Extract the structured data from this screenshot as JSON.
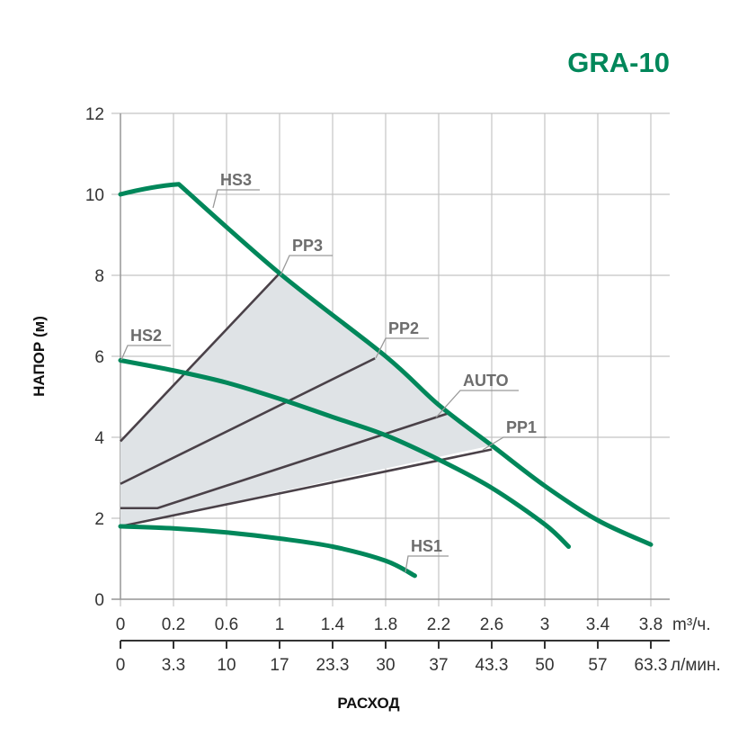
{
  "chart_data": {
    "type": "line",
    "title": "GRA-10",
    "xlabel": "РАСХОД",
    "ylabel": "НАПОР (м)",
    "x_ticks_primary": [
      "0",
      "0.2",
      "0.6",
      "1",
      "1.4",
      "1.8",
      "2.2",
      "2.6",
      "3",
      "3.4",
      "3.8"
    ],
    "x_unit_primary": "m³/ч.",
    "x_ticks_secondary": [
      "0",
      "3.3",
      "10",
      "17",
      "23.3",
      "30",
      "37",
      "43.3",
      "50",
      "57",
      "63.3"
    ],
    "x_unit_secondary": "л/мин.",
    "x_note": "x values below are tick index positions (0 = first tick, 10 = last tick)",
    "xlim": [
      0,
      10
    ],
    "y_ticks": [
      "0",
      "2",
      "4",
      "6",
      "8",
      "10",
      "12"
    ],
    "ylim": [
      0,
      12
    ],
    "grid": true,
    "colors": {
      "hs": "#00875a",
      "pp": "#4a4148",
      "area": "#dfe3e6",
      "grid": "#c4c4c4"
    },
    "series": [
      {
        "name": "HS3",
        "kind": "hs",
        "points": [
          [
            0,
            10
          ],
          [
            1.1,
            10.25
          ],
          [
            3,
            8.05
          ],
          [
            5,
            6.0
          ],
          [
            6,
            4.8
          ],
          [
            7,
            3.8
          ],
          [
            8,
            2.8
          ],
          [
            9,
            1.95
          ],
          [
            10,
            1.35
          ]
        ]
      },
      {
        "name": "HS2",
        "kind": "hs",
        "points": [
          [
            0,
            5.9
          ],
          [
            1,
            5.65
          ],
          [
            2,
            5.35
          ],
          [
            3,
            4.95
          ],
          [
            4,
            4.5
          ],
          [
            5,
            4.05
          ],
          [
            6,
            3.45
          ],
          [
            7,
            2.75
          ],
          [
            8,
            1.85
          ],
          [
            8.45,
            1.3
          ]
        ]
      },
      {
        "name": "HS1",
        "kind": "hs",
        "points": [
          [
            0,
            1.8
          ],
          [
            1,
            1.75
          ],
          [
            2,
            1.65
          ],
          [
            3,
            1.5
          ],
          [
            4,
            1.3
          ],
          [
            5,
            0.95
          ],
          [
            5.55,
            0.58
          ]
        ]
      },
      {
        "name": "PP3",
        "kind": "pp",
        "points": [
          [
            0,
            3.9
          ],
          [
            3,
            8.05
          ]
        ]
      },
      {
        "name": "PP2",
        "kind": "pp",
        "points": [
          [
            0,
            2.85
          ],
          [
            4.8,
            5.95
          ]
        ]
      },
      {
        "name": "AUTO",
        "kind": "pp",
        "points": [
          [
            0,
            2.25
          ],
          [
            0.7,
            2.25
          ],
          [
            6.2,
            4.6
          ]
        ]
      },
      {
        "name": "PP1",
        "kind": "pp",
        "points": [
          [
            0,
            1.8
          ],
          [
            7,
            3.7
          ]
        ]
      }
    ],
    "shaded_region": [
      [
        0,
        1.8
      ],
      [
        0,
        3.9
      ],
      [
        3,
        8.05
      ],
      [
        5,
        6.0
      ],
      [
        6,
        4.8
      ],
      [
        7,
        3.8
      ],
      [
        0,
        1.8
      ]
    ]
  }
}
